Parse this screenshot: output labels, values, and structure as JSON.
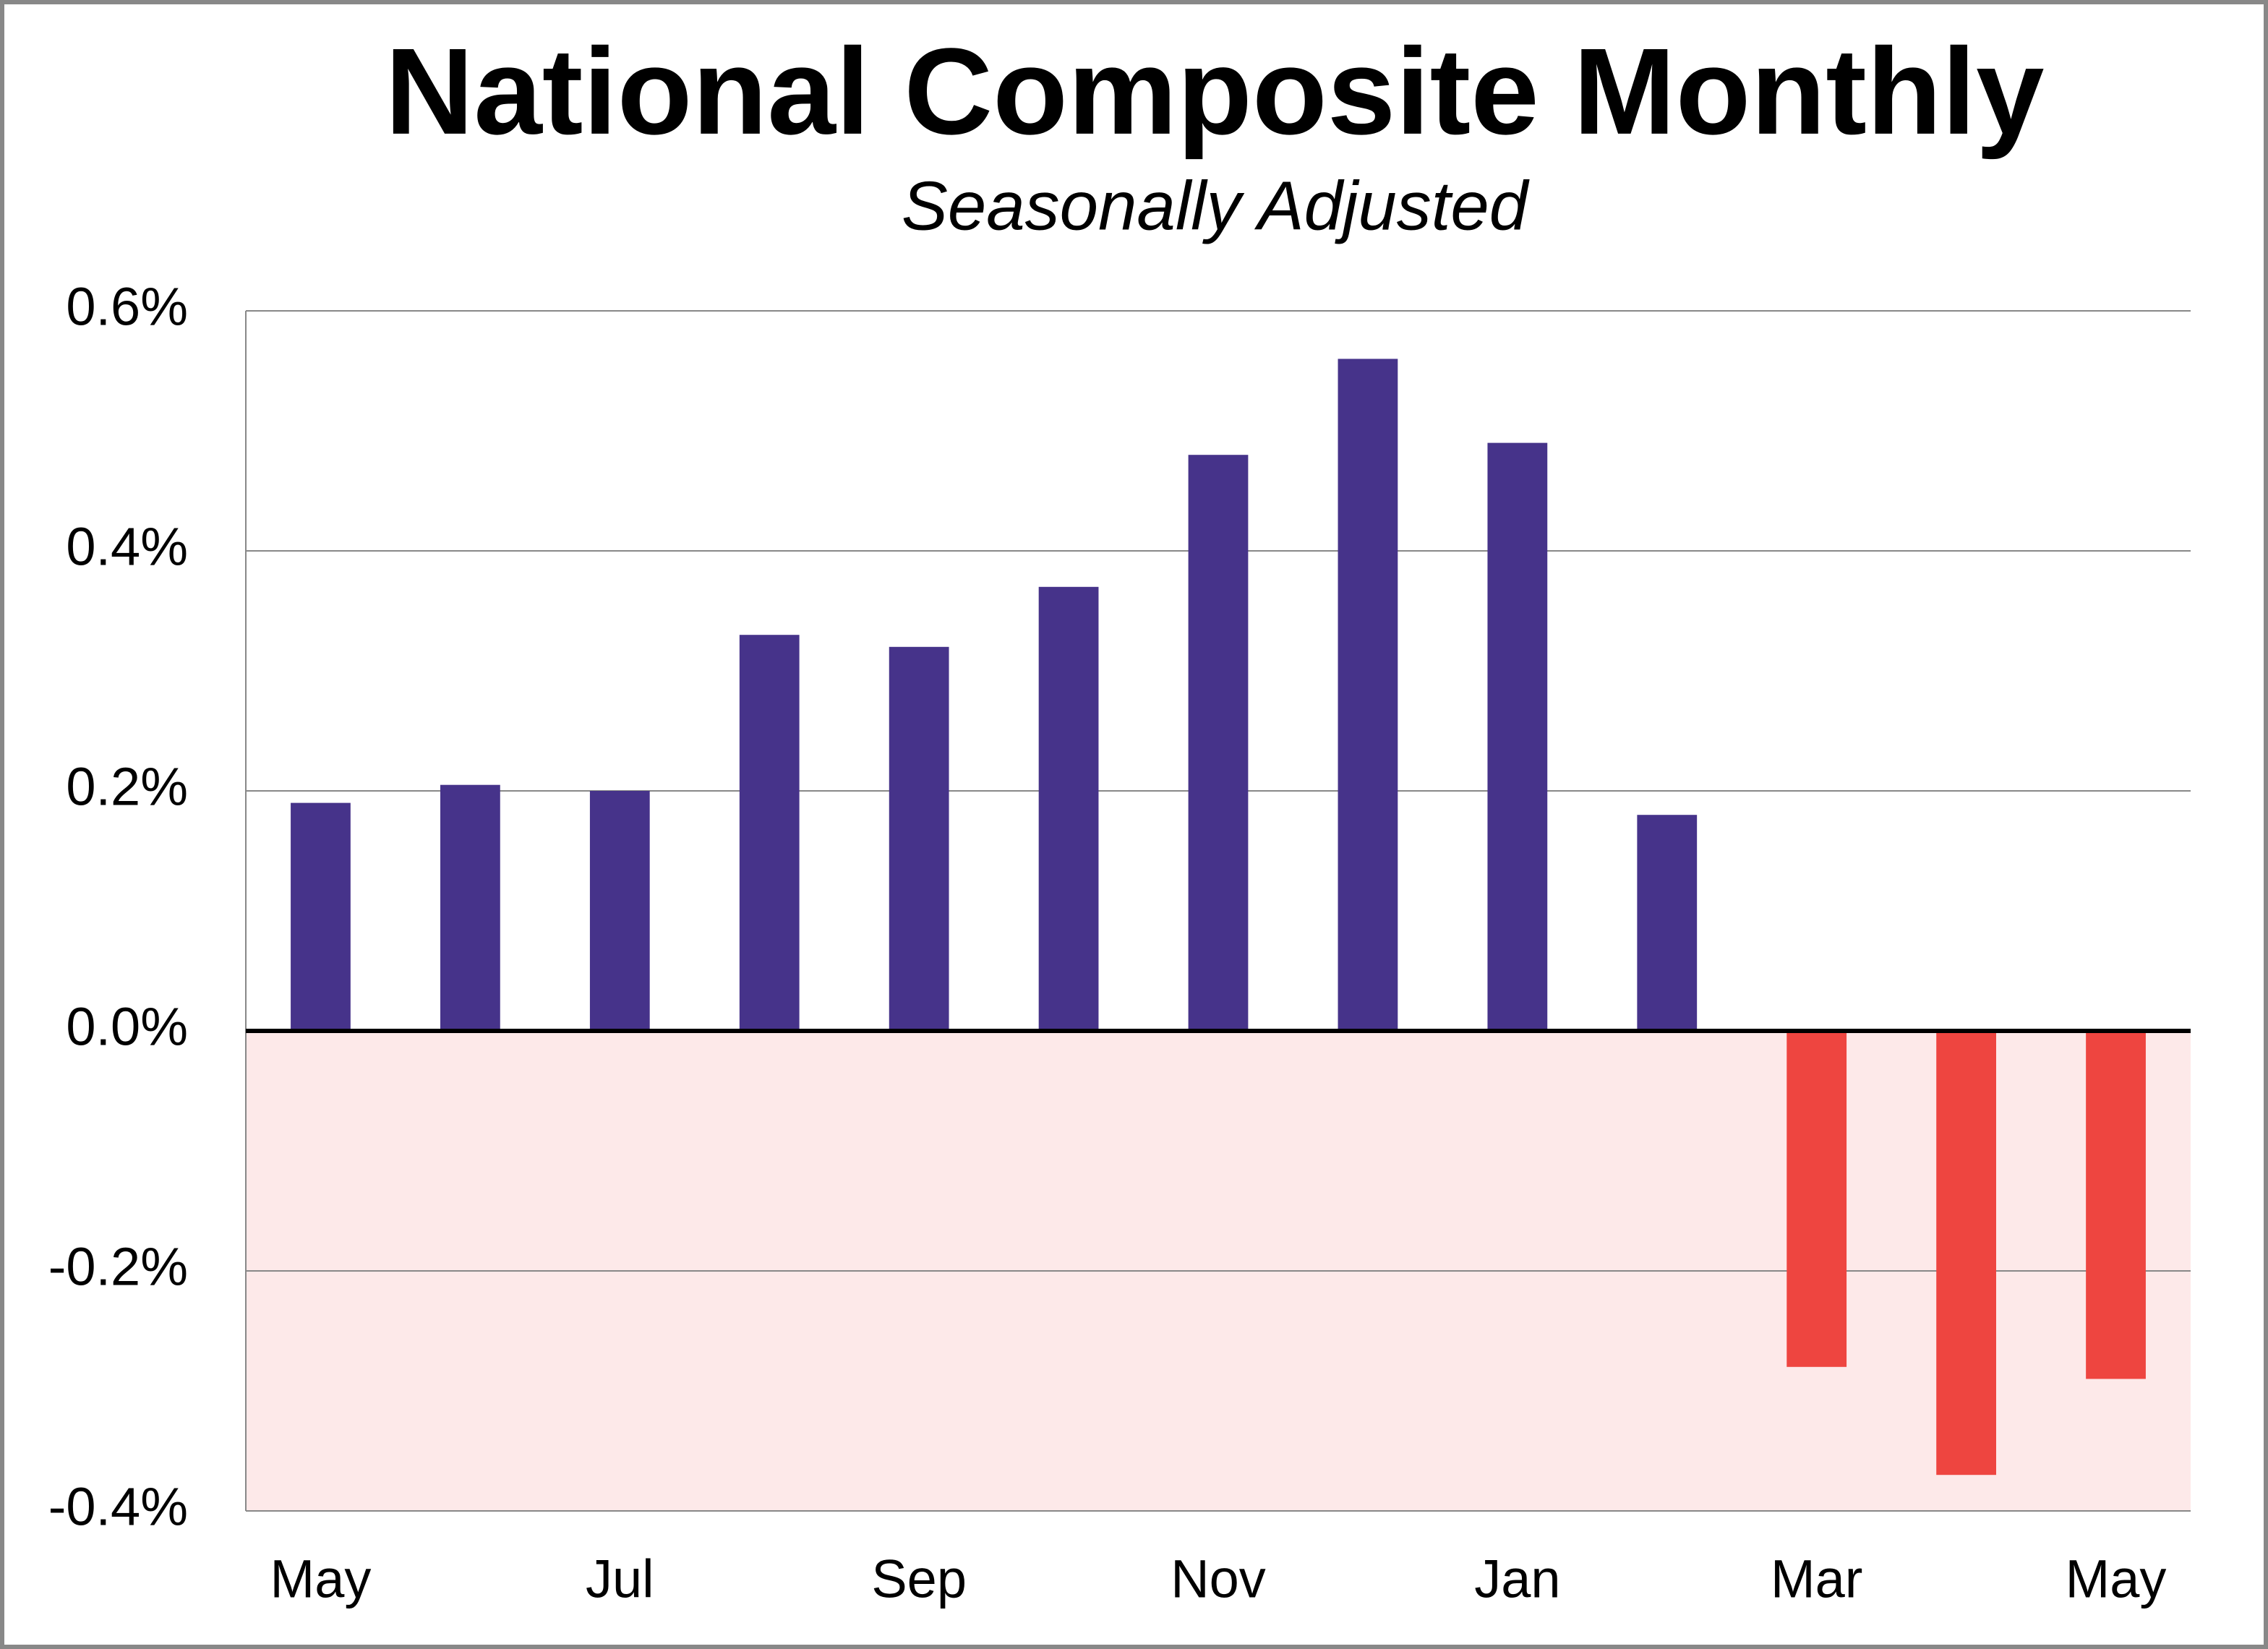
{
  "chart_data": {
    "type": "bar",
    "title": "National Composite Monthly",
    "subtitle": "Seasonally Adjusted",
    "categories": [
      "May",
      null,
      "Jul",
      null,
      "Sep",
      null,
      "Nov",
      null,
      "Jan",
      null,
      "Mar",
      null,
      "May"
    ],
    "values": [
      0.19,
      0.205,
      0.2,
      0.33,
      0.32,
      0.37,
      0.48,
      0.56,
      0.49,
      0.18,
      -0.28,
      -0.37,
      -0.29
    ],
    "color": "#46338a",
    "negative_color": "#ee4540",
    "negative_region_color": "#fde9e9",
    "ylim": [
      -0.4,
      0.6
    ],
    "yticks": [
      {
        "value": -0.4,
        "label": "-0.4%"
      },
      {
        "value": -0.2,
        "label": "-0.2%"
      },
      {
        "value": 0,
        "label": "0.0%"
      },
      {
        "value": 0.2,
        "label": "0.2%"
      },
      {
        "value": 0.4,
        "label": "0.4%"
      },
      {
        "value": 0.6,
        "label": "0.6%"
      }
    ],
    "grid": true
  }
}
